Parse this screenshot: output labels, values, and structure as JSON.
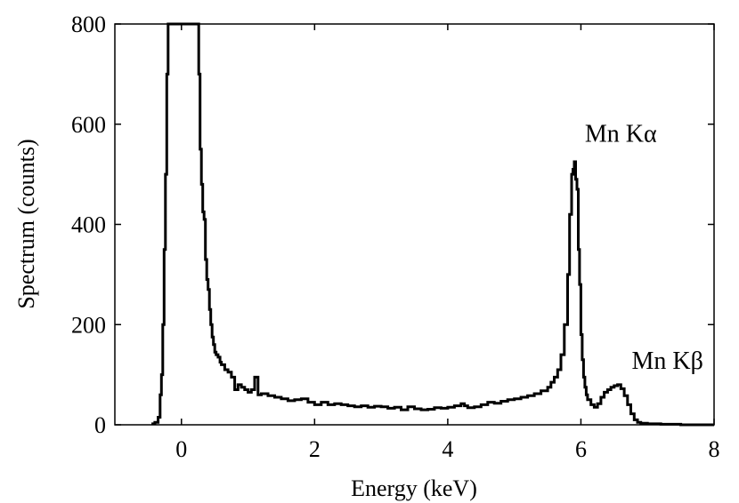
{
  "chart_data": {
    "type": "line",
    "title": "",
    "xlabel": "Energy (keV)",
    "ylabel": "Spectrum (counts)",
    "xlim": [
      -1,
      8
    ],
    "ylim": [
      0,
      800
    ],
    "xticks": [
      0,
      2,
      4,
      6,
      8
    ],
    "xtick_labels": [
      "0",
      "2",
      "4",
      "6",
      "8"
    ],
    "yticks": [
      0,
      200,
      400,
      600,
      800
    ],
    "ytick_labels": [
      "0",
      "200",
      "400",
      "600",
      "800"
    ],
    "grid": false,
    "legend": "none",
    "line_color": "#000000",
    "step": true,
    "annotations": [
      {
        "text": "Mn Kα",
        "x": 6.6,
        "y": 565
      },
      {
        "text": "Mn Kβ",
        "x": 7.3,
        "y": 112
      }
    ],
    "series": [
      {
        "x": [
          -0.45,
          -0.4,
          -0.35,
          -0.32,
          -0.3,
          -0.28,
          -0.26,
          -0.24,
          -0.22,
          -0.2,
          -0.19,
          0.25,
          0.26,
          0.28,
          0.3,
          0.32,
          0.34,
          0.36,
          0.38,
          0.4,
          0.42,
          0.44,
          0.46,
          0.48,
          0.5,
          0.52,
          0.55,
          0.58,
          0.6,
          0.65,
          0.7,
          0.75,
          0.8,
          0.85,
          0.9,
          0.95,
          1.0,
          1.05,
          1.1,
          1.15,
          1.2,
          1.3,
          1.4,
          1.5,
          1.6,
          1.7,
          1.8,
          1.9,
          2.0,
          2.1,
          2.2,
          2.3,
          2.4,
          2.5,
          2.6,
          2.7,
          2.8,
          2.9,
          3.0,
          3.1,
          3.2,
          3.3,
          3.4,
          3.5,
          3.6,
          3.7,
          3.8,
          3.9,
          4.0,
          4.1,
          4.2,
          4.25,
          4.3,
          4.4,
          4.5,
          4.6,
          4.7,
          4.8,
          4.9,
          5.0,
          5.1,
          5.2,
          5.3,
          5.4,
          5.5,
          5.55,
          5.6,
          5.65,
          5.7,
          5.75,
          5.8,
          5.83,
          5.86,
          5.88,
          5.9,
          5.92,
          5.94,
          5.96,
          5.98,
          6.0,
          6.02,
          6.04,
          6.06,
          6.08,
          6.1,
          6.15,
          6.2,
          6.25,
          6.3,
          6.35,
          6.4,
          6.45,
          6.5,
          6.55,
          6.6,
          6.65,
          6.7,
          6.75,
          6.8,
          6.85,
          6.9,
          7.0,
          7.2,
          7.5,
          7.8,
          8.0
        ],
        "y": [
          2,
          5,
          15,
          60,
          100,
          200,
          350,
          500,
          700,
          800,
          800,
          800,
          700,
          550,
          480,
          425,
          410,
          330,
          290,
          270,
          230,
          200,
          175,
          160,
          145,
          140,
          135,
          125,
          120,
          110,
          105,
          95,
          70,
          80,
          75,
          70,
          65,
          70,
          95,
          60,
          62,
          58,
          55,
          52,
          48,
          50,
          52,
          45,
          40,
          45,
          40,
          42,
          40,
          38,
          36,
          38,
          35,
          37,
          36,
          33,
          35,
          30,
          36,
          32,
          30,
          31,
          34,
          33,
          35,
          38,
          42,
          38,
          34,
          36,
          40,
          45,
          43,
          47,
          50,
          52,
          55,
          58,
          62,
          68,
          75,
          85,
          95,
          110,
          140,
          200,
          300,
          420,
          500,
          510,
          525,
          490,
          470,
          350,
          280,
          180,
          130,
          95,
          75,
          60,
          50,
          40,
          35,
          42,
          55,
          65,
          70,
          75,
          78,
          80,
          72,
          58,
          40,
          22,
          10,
          5,
          3,
          2,
          1,
          0,
          0,
          0
        ]
      }
    ]
  }
}
